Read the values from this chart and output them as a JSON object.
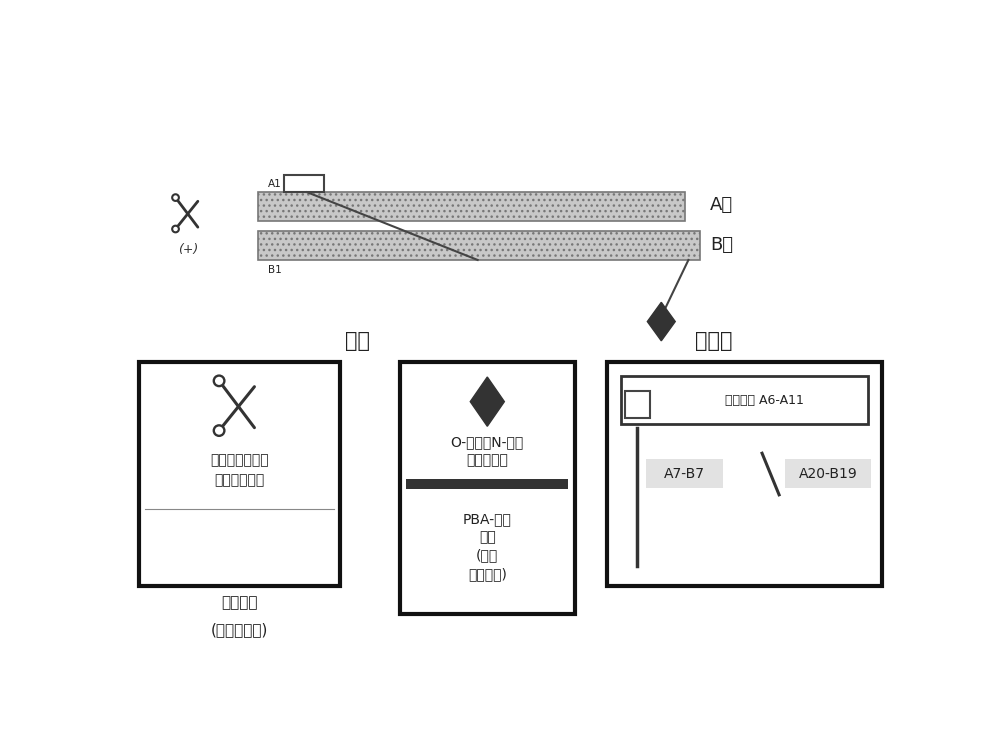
{
  "bg_color": "#ffffff",
  "a_chain_label": "A链",
  "b_chain_label": "B链",
  "a1_label": "A1",
  "b1_label": "B1",
  "section_label_modify": "修饰",
  "section_label_disulfide": "二硫键",
  "box1_title_line1": "苯基硼酸",
  "box1_title_line2": "(任选的卤化)",
  "box1_content_line1": "单体葡萄糖结合",
  "box1_content_line2": "部分和间隔物",
  "box2_top_line1": "O-连接或N-连接",
  "box2_top_line2": "的糖加合物",
  "box2_bottom_line1": "PBA-结合",
  "box2_bottom_line2": "元件",
  "box2_bottom_line3": "(各种",
  "box2_bottom_line4": "二醇试剂)",
  "box3_top": "半胱氨酸 A6-A11",
  "box3_mid": "A7-B7",
  "box3_right": "A20-B19",
  "text_color": "#222222",
  "chain_gray": "#c8c8c8",
  "chain_edge": "#777777"
}
